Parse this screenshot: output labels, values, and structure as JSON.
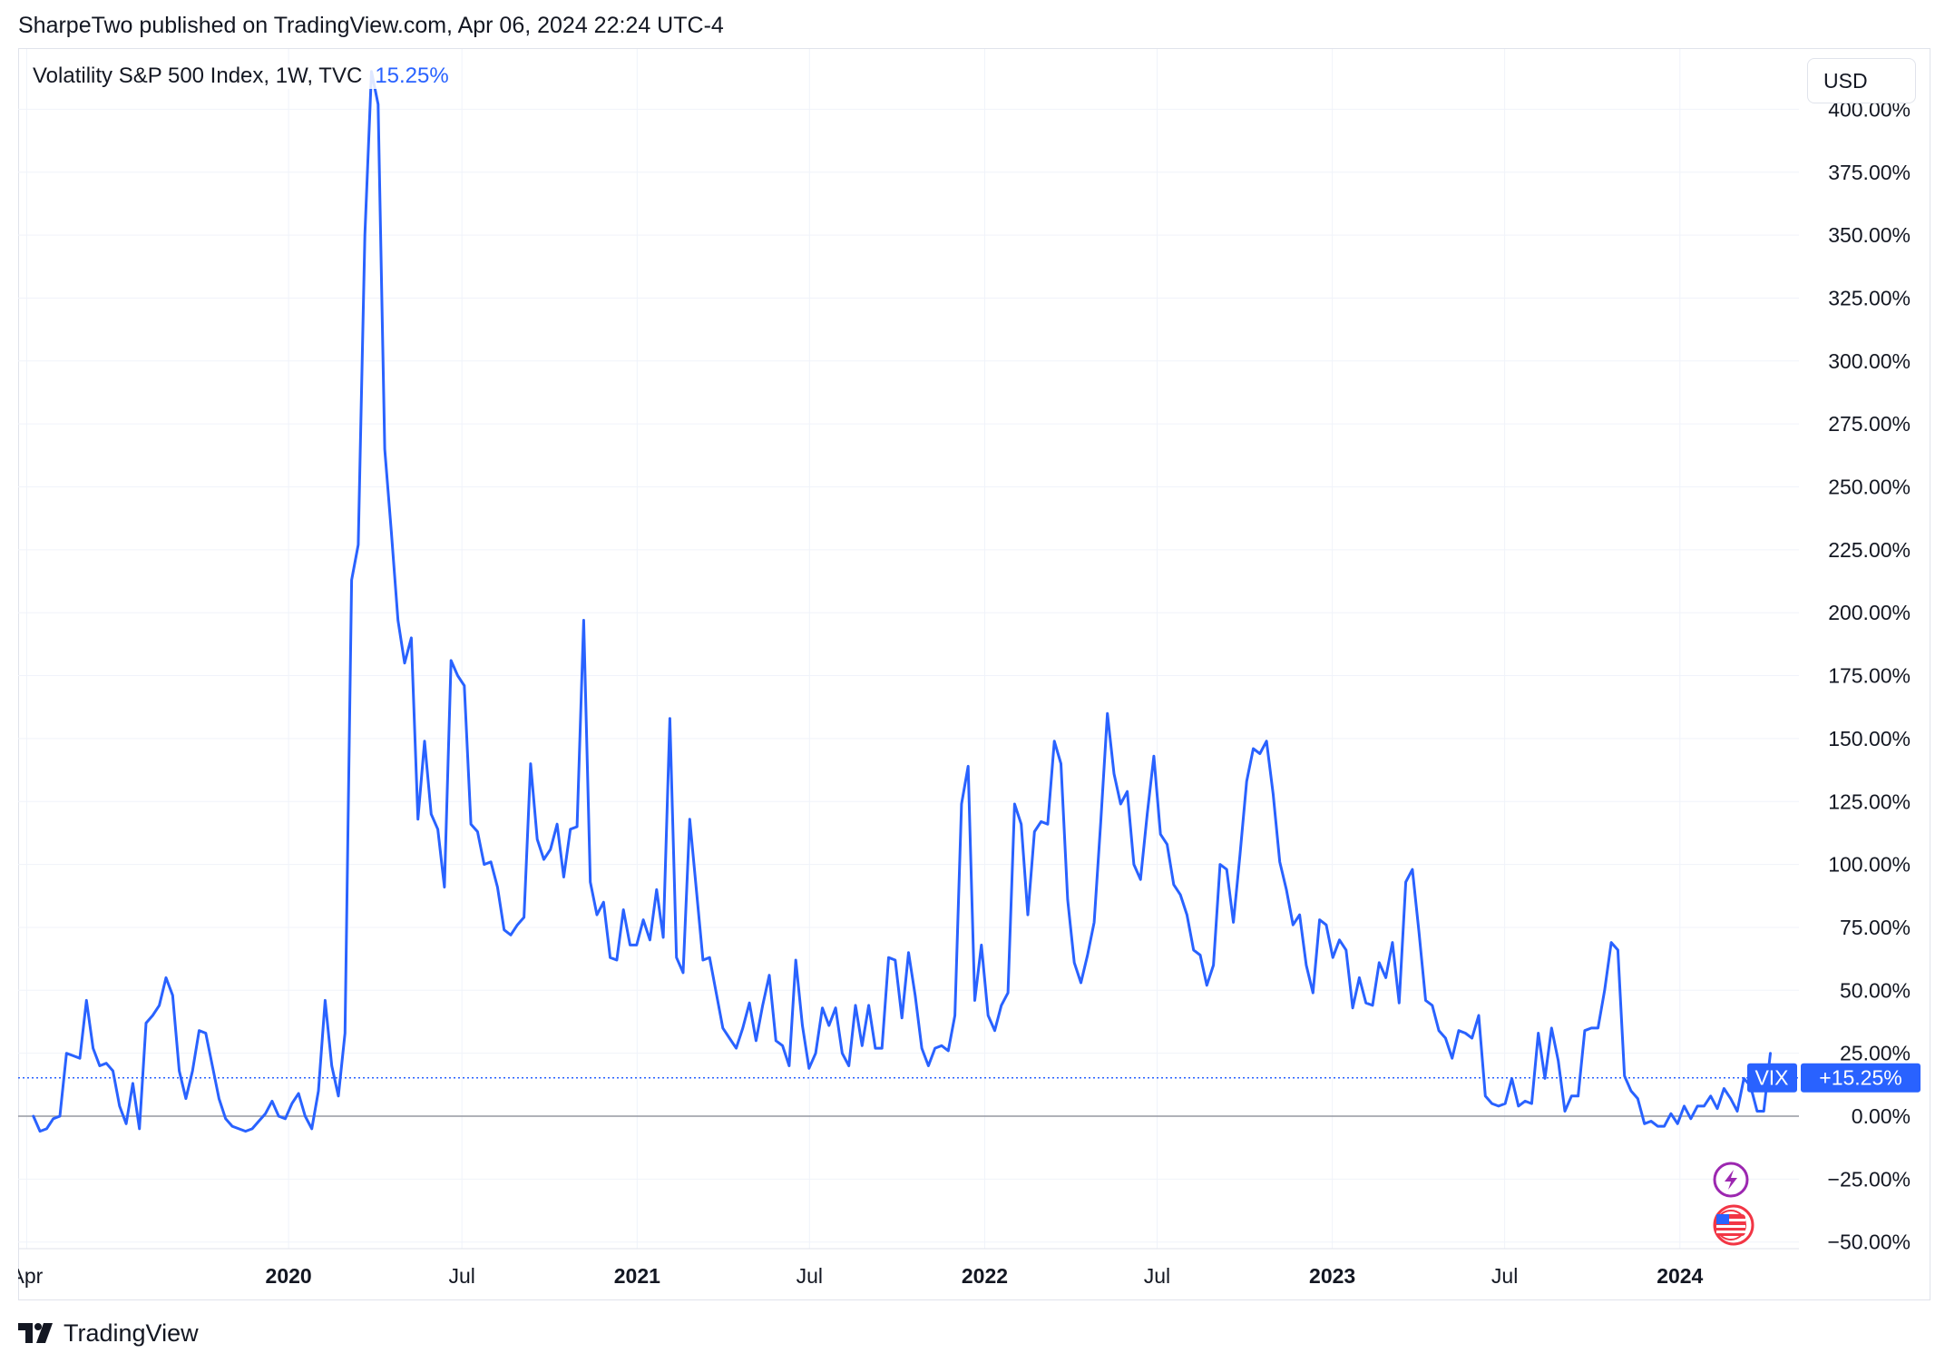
{
  "header": {
    "published_line": "SharpeTwo published on TradingView.com, Apr 06, 2024 22:24 UTC-4"
  },
  "legend": {
    "title": "Volatility S&P 500 Index, 1W, TVC",
    "value": "15.25%"
  },
  "currency_button": {
    "label": "USD"
  },
  "price_badges": {
    "symbol": "VIX",
    "value": "+15.25%"
  },
  "footer": {
    "logo_text": "TradingView",
    "logo_icon": "tradingview-logo-icon"
  },
  "event_icons": [
    "lightning-icon",
    "us-flag-icon"
  ],
  "colors": {
    "line": "#2962ff",
    "badge": "#2962ff",
    "grid": "#f0f3fa",
    "zero_line": "#9598a1"
  },
  "chart_data": {
    "type": "line",
    "title": "Volatility S&P 500 Index, 1W, TVC",
    "series": [
      {
        "name": "VIX",
        "x_start": "2019-04-08",
        "x_end": "2024-04-05",
        "values": [
          0.0,
          -6.0,
          -5.0,
          -1.0,
          0.0,
          25.0,
          24.0,
          23.0,
          46.0,
          27.0,
          20.0,
          21.0,
          18.0,
          4.0,
          -3.0,
          13.0,
          -5.0,
          37.0,
          40.0,
          44.0,
          55.0,
          48.0,
          18.0,
          7.0,
          18.0,
          34.0,
          33.0,
          20.0,
          7.0,
          -1.0,
          -4.0,
          -5.0,
          -6.0,
          -5.0,
          -2.0,
          1.0,
          6.0,
          0.0,
          -1.0,
          5.0,
          9.0,
          0.0,
          -5.0,
          10.0,
          46.0,
          20.0,
          8.0,
          33.0,
          213.0,
          227.0,
          350.0,
          415.0,
          402.0,
          265.0,
          232.0,
          197.0,
          180.0,
          190.0,
          118.0,
          149.0,
          120.0,
          114.0,
          91.0,
          181.0,
          175.0,
          171.0,
          116.0,
          113.0,
          100.0,
          101.0,
          91.0,
          74.0,
          72.0,
          76.0,
          79.0,
          140.0,
          110.0,
          102.0,
          106.0,
          116.0,
          95.0,
          114.0,
          115.0,
          197.0,
          93.0,
          80.0,
          85.0,
          63.0,
          62.0,
          82.0,
          68.0,
          68.0,
          78.0,
          70.0,
          90.0,
          71.0,
          158.0,
          63.0,
          57.0,
          118.0,
          90.0,
          62.0,
          63.0,
          49.0,
          35.0,
          31.0,
          27.0,
          35.0,
          45.0,
          30.0,
          44.0,
          56.0,
          30.0,
          28.0,
          20.0,
          62.0,
          36.0,
          19.0,
          25.0,
          43.0,
          36.0,
          43.0,
          25.0,
          20.0,
          44.0,
          28.0,
          44.0,
          27.0,
          27.0,
          63.0,
          62.0,
          39.0,
          65.0,
          48.0,
          27.0,
          20.0,
          27.0,
          28.0,
          26.0,
          40.0,
          124.0,
          139.0,
          46.0,
          68.0,
          40.0,
          34.0,
          44.0,
          49.0,
          124.0,
          116.0,
          80.0,
          113.0,
          117.0,
          116.0,
          149.0,
          140.0,
          86.0,
          61.0,
          53.0,
          64.0,
          77.0,
          117.0,
          160.0,
          136.0,
          124.0,
          129.0,
          100.0,
          94.0,
          120.0,
          143.0,
          112.0,
          108.0,
          92.0,
          88.0,
          80.0,
          66.0,
          64.0,
          52.0,
          60.0,
          100.0,
          98.0,
          77.0,
          104.0,
          133.0,
          146.0,
          144.0,
          149.0,
          128.0,
          101.0,
          90.0,
          76.0,
          80.0,
          60.0,
          49.0,
          78.0,
          76.0,
          63.0,
          70.0,
          66.0,
          43.0,
          55.0,
          45.0,
          44.0,
          61.0,
          55.0,
          69.0,
          45.0,
          93.0,
          98.0,
          73.0,
          46.0,
          44.0,
          34.0,
          31.0,
          23.0,
          34.0,
          33.0,
          31.0,
          40.0,
          8.0,
          5.0,
          4.0,
          5.0,
          15.0,
          4.0,
          6.0,
          5.0,
          33.0,
          15.0,
          35.0,
          22.0,
          2.0,
          8.0,
          8.0,
          34.0,
          35.0,
          35.0,
          50.0,
          69.0,
          66.0,
          16.0,
          10.0,
          7.0,
          -3.0,
          -2.0,
          -4.0,
          -4.0,
          1.0,
          -3.0,
          4.0,
          -1.0,
          4.0,
          4.0,
          8.0,
          3.0,
          11.0,
          7.0,
          2.0,
          15.0,
          12.0,
          2.0,
          2.0,
          25.0
        ]
      }
    ],
    "last_value": 15.25,
    "ylabel": "",
    "xlabel": "",
    "ylim": [
      -50,
      400
    ],
    "y_ticks": [
      "400.00%",
      "375.00%",
      "350.00%",
      "325.00%",
      "300.00%",
      "275.00%",
      "250.00%",
      "225.00%",
      "200.00%",
      "175.00%",
      "150.00%",
      "125.00%",
      "100.00%",
      "75.00%",
      "50.00%",
      "25.00%",
      "0.00%",
      "−25.00%",
      "−50.00%"
    ],
    "x_ticks": [
      {
        "label": "Apr",
        "date": "2019-04-01",
        "bold": false
      },
      {
        "label": "2020",
        "date": "2020-01-01",
        "bold": true
      },
      {
        "label": "Jul",
        "date": "2020-07-01",
        "bold": false
      },
      {
        "label": "2021",
        "date": "2021-01-01",
        "bold": true
      },
      {
        "label": "Jul",
        "date": "2021-07-01",
        "bold": false
      },
      {
        "label": "2022",
        "date": "2022-01-01",
        "bold": true
      },
      {
        "label": "Jul",
        "date": "2022-07-01",
        "bold": false
      },
      {
        "label": "2023",
        "date": "2023-01-01",
        "bold": true
      },
      {
        "label": "Jul",
        "date": "2023-07-01",
        "bold": false
      },
      {
        "label": "2024",
        "date": "2024-01-01",
        "bold": true
      }
    ],
    "grid": true,
    "legend_position": "top-left"
  }
}
